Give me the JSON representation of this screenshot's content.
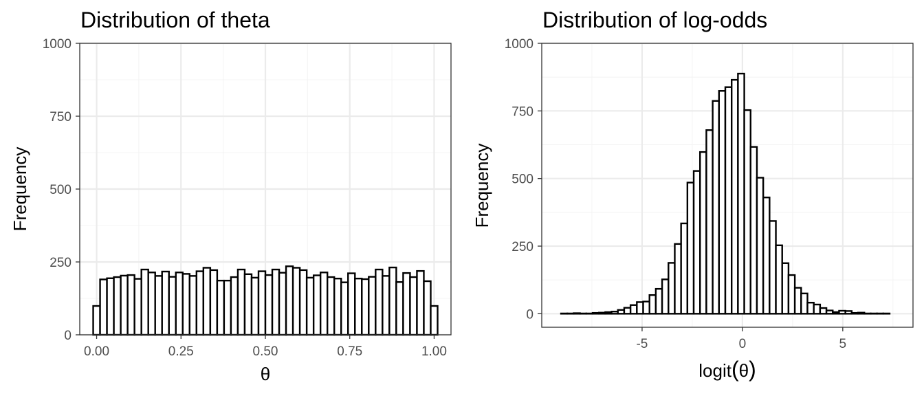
{
  "chart_data": [
    {
      "type": "histogram",
      "title": "Distribution of theta",
      "xlabel": "θ",
      "ylabel": "Frequency",
      "xlim": [
        -0.05,
        1.05
      ],
      "ylim": [
        0,
        1000
      ],
      "x_ticks": [
        0,
        0.25,
        0.5,
        0.75,
        1
      ],
      "x_tick_labels": [
        "0.00",
        "0.25",
        "0.50",
        "0.75",
        "1.00"
      ],
      "y_ticks": [
        0,
        250,
        500,
        750,
        1000
      ],
      "y_tick_labels": [
        "0",
        "250",
        "500",
        "750",
        "1000"
      ],
      "grid": true,
      "bin_width": 0.02041,
      "bin_start": -0.0102,
      "values": [
        99,
        190,
        194,
        198,
        203,
        205,
        192,
        224,
        214,
        202,
        217,
        199,
        214,
        209,
        202,
        218,
        230,
        222,
        186,
        186,
        198,
        224,
        208,
        196,
        218,
        205,
        224,
        213,
        235,
        230,
        222,
        196,
        204,
        214,
        198,
        193,
        180,
        211,
        193,
        191,
        199,
        224,
        202,
        231,
        181,
        212,
        198,
        219,
        184,
        99
      ]
    },
    {
      "type": "histogram",
      "title": "Distribution of log-odds",
      "xlabel_prefix": "logit",
      "xlabel_paren_open": "(",
      "xlabel_symbol": "θ",
      "xlabel_paren_close": ")",
      "ylabel": "Frequency",
      "xlim": [
        -10,
        8.5
      ],
      "ylim": [
        -50,
        1000
      ],
      "x_ticks": [
        -5,
        0,
        5
      ],
      "x_tick_labels": [
        "-5",
        "0",
        "5"
      ],
      "y_ticks": [
        0,
        250,
        500,
        750,
        1000
      ],
      "y_tick_labels": [
        "0",
        "250",
        "500",
        "750",
        "1000"
      ],
      "grid": true,
      "bin_width": 0.3149,
      "bin_start": -9.04,
      "values": [
        1,
        1,
        2,
        1,
        1,
        3,
        4,
        6,
        8,
        14,
        22,
        32,
        43,
        45,
        69,
        92,
        127,
        188,
        258,
        334,
        485,
        528,
        598,
        679,
        787,
        824,
        838,
        865,
        888,
        753,
        617,
        503,
        430,
        343,
        253,
        187,
        143,
        96,
        75,
        41,
        34,
        21,
        12,
        6,
        11,
        10,
        3,
        4,
        1,
        1,
        1,
        1
      ]
    }
  ]
}
